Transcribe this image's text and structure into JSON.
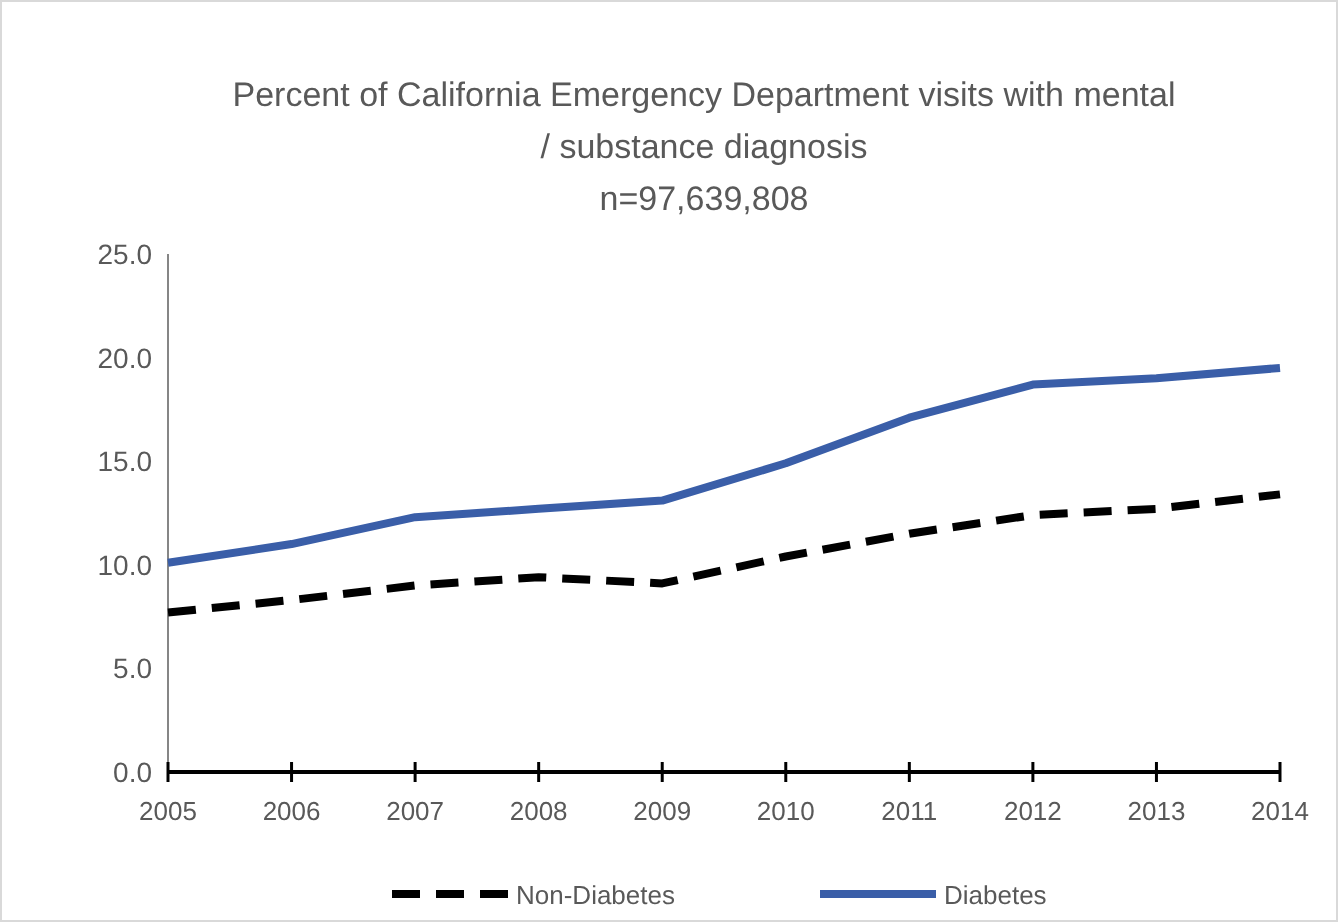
{
  "chart_data": {
    "type": "line",
    "title": "Percent of California Emergency Department visits with mental / substance diagnosis\nn=97,639,808",
    "categories": [
      "2005",
      "2006",
      "2007",
      "2008",
      "2009",
      "2010",
      "2011",
      "2012",
      "2013",
      "2014"
    ],
    "series": [
      {
        "name": "Non-Diabetes",
        "color": "#000000",
        "line_style": "dashed",
        "values": [
          7.7,
          8.3,
          9.0,
          9.4,
          9.1,
          10.4,
          11.5,
          12.4,
          12.7,
          13.4
        ]
      },
      {
        "name": "Diabetes",
        "color": "#3a5ea8",
        "line_style": "solid",
        "values": [
          10.1,
          11.0,
          12.3,
          12.7,
          13.1,
          14.9,
          17.1,
          18.7,
          19.0,
          19.5
        ]
      }
    ],
    "ylim": [
      0,
      25
    ],
    "yticks": [
      {
        "value": 0,
        "label": "0.0"
      },
      {
        "value": 5,
        "label": "5.0"
      },
      {
        "value": 10,
        "label": "10.0"
      },
      {
        "value": 15,
        "label": "15.0"
      },
      {
        "value": 20,
        "label": "20.0"
      },
      {
        "value": 25,
        "label": "25.0"
      }
    ],
    "grid": false,
    "legend": "bottom",
    "marker": "none"
  }
}
